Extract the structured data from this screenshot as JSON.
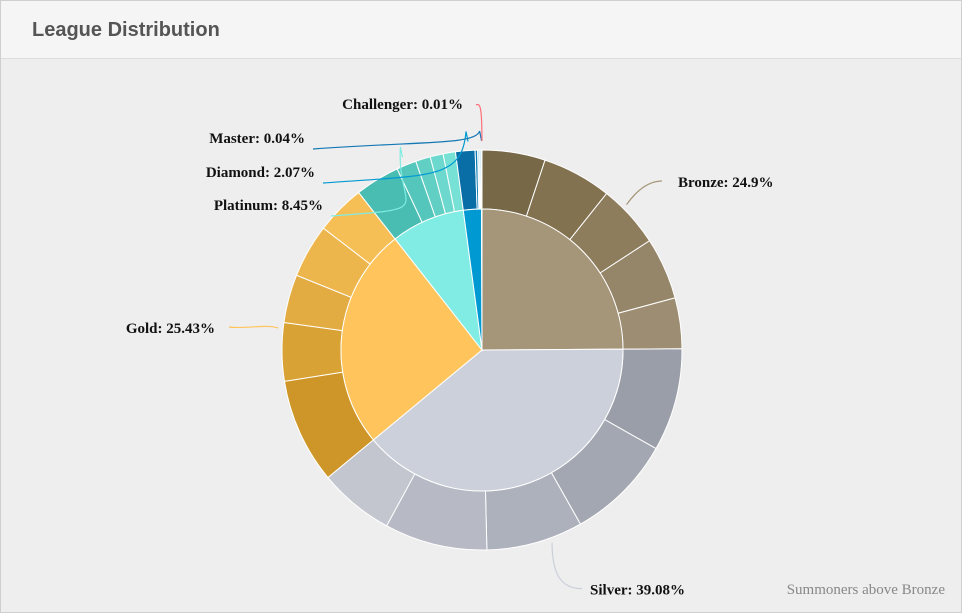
{
  "panel": {
    "title": "League Distribution"
  },
  "chart_data": {
    "type": "pie",
    "variant": "donut-with-inner-pie",
    "credits": "Summoners above Bronze",
    "leagues": [
      {
        "name": "Bronze",
        "percent": 24.9,
        "label": "Bronze: 24.9%",
        "color": "#a69679",
        "divisions": [
          5.1,
          5.6,
          5.1,
          5.0,
          4.1
        ],
        "division_colors": [
          "#776848",
          "#82724f",
          "#8d7d5c",
          "#958569",
          "#9d8d72"
        ]
      },
      {
        "name": "Silver",
        "percent": 39.08,
        "label": "Silver: 39.08%",
        "color": "#ccd0da",
        "divisions": [
          8.3,
          8.6,
          7.8,
          8.3,
          6.08
        ],
        "division_colors": [
          "#9a9ea8",
          "#a3a7b1",
          "#adb1bc",
          "#b7bac5",
          "#c3c5cf"
        ]
      },
      {
        "name": "Gold",
        "percent": 25.43,
        "label": "Gold: 25.43%",
        "color": "#ffc55c",
        "divisions": [
          8.5,
          4.7,
          3.9,
          4.33,
          4.0
        ],
        "division_colors": [
          "#ce9628",
          "#d9a235",
          "#e3ac42",
          "#edb64d",
          "#f6bf55"
        ]
      },
      {
        "name": "Platinum",
        "percent": 8.45,
        "label": "Platinum: 8.45%",
        "color": "#80ece3",
        "divisions": [
          3.6,
          1.6,
          1.2,
          1.05,
          1.0
        ],
        "division_colors": [
          "#49bdb2",
          "#55c6bb",
          "#61cfc4",
          "#6dd8cd",
          "#78e1d6"
        ]
      },
      {
        "name": "Diamond",
        "percent": 2.07,
        "label": "Diamond: 2.07%",
        "color": "#0099d2",
        "divisions": [
          1.57,
          0.2,
          0.1,
          0.1,
          0.1
        ],
        "division_colors": [
          "#0a6ea6",
          "#0b7db5",
          "#0a8ac2",
          "#0994ca",
          "#089ed2"
        ]
      },
      {
        "name": "Master",
        "percent": 0.04,
        "label": "Master: 0.04%",
        "color": "#1478b4",
        "divisions": [
          0.04
        ],
        "division_colors": [
          "#1478b4"
        ]
      },
      {
        "name": "Challenger",
        "percent": 0.01,
        "label": "Challenger: 0.01%",
        "color": "#ff6f7a",
        "divisions": [
          0.01
        ],
        "division_colors": [
          "#ff6f7a"
        ]
      }
    ]
  }
}
